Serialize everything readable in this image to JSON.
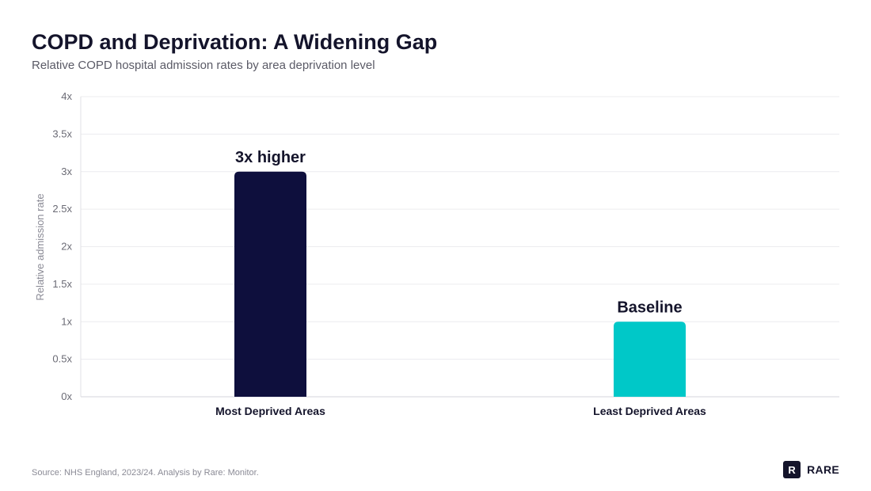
{
  "header": {
    "title": "COPD and Deprivation: A Widening Gap",
    "subtitle": "Relative COPD hospital admission rates by area deprivation level"
  },
  "chart_data": {
    "type": "bar",
    "categories": [
      "Most Deprived Areas",
      "Least Deprived Areas"
    ],
    "values": [
      3,
      1
    ],
    "data_labels": [
      "3x higher",
      "Baseline"
    ],
    "colors": [
      "#0e0f3d",
      "#00c8c8"
    ],
    "ylabel": "Relative admission rate",
    "xlabel": "",
    "ylim": [
      0,
      4
    ],
    "y_ticks": [
      0,
      0.5,
      1,
      1.5,
      2,
      2.5,
      3,
      3.5,
      4
    ],
    "y_tick_labels": [
      "0x",
      "0.5x",
      "1x",
      "1.5x",
      "2x",
      "2.5x",
      "3x",
      "3.5x",
      "4x"
    ],
    "grid": true,
    "legend": "none"
  },
  "footer": {
    "source": "Source: NHS England, 2023/24. Analysis by Rare: Monitor.",
    "brand_mark": "R",
    "brand_name": "RARE"
  }
}
